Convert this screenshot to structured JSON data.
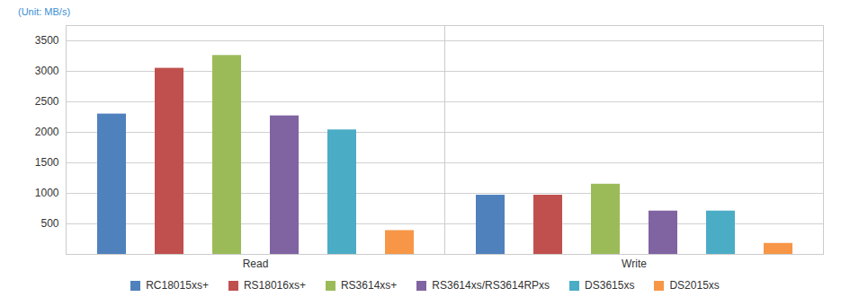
{
  "chart_data": {
    "type": "bar",
    "ylabel": "(Unit: MB/s)",
    "categories": [
      "Read",
      "Write"
    ],
    "series": [
      {
        "name": "RC18015xs+",
        "color": "#4f81bd",
        "values": [
          2300,
          970
        ]
      },
      {
        "name": "RS18016xs+",
        "color": "#c0504d",
        "values": [
          3050,
          970
        ]
      },
      {
        "name": "RS3614xs+",
        "color": "#9bbb59",
        "values": [
          3260,
          1150
        ]
      },
      {
        "name": "RS3614xs/RS3614RPxs",
        "color": "#8064a2",
        "values": [
          2270,
          710
        ]
      },
      {
        "name": "DS3615xs",
        "color": "#4bacc6",
        "values": [
          2040,
          710
        ]
      },
      {
        "name": "DS2015xs",
        "color": "#f79646",
        "values": [
          390,
          180
        ]
      }
    ],
    "ylim": [
      0,
      3750
    ],
    "yticks": [
      500,
      1000,
      1500,
      2000,
      2500,
      3000,
      3500
    ],
    "grid": true,
    "legend": "bottom"
  }
}
